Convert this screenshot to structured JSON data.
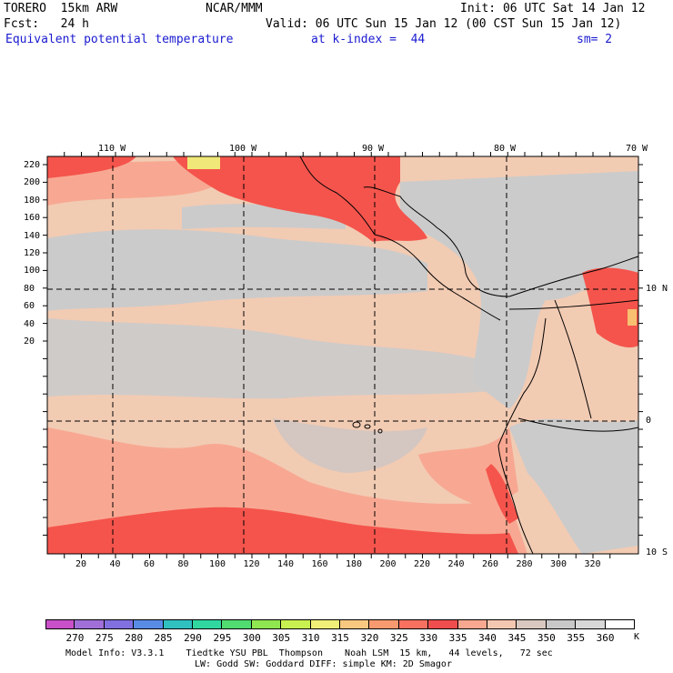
{
  "header": {
    "model": "TORERO  15km ARW",
    "center": "NCAR/MMM",
    "init": "Init: 06 UTC Sat 14 Jan 12",
    "fcst": "Fcst:   24 h",
    "valid": "Valid: 06 UTC Sun 15 Jan 12 (00 CST Sun 15 Jan 12)",
    "field": "Equivalent potential temperature",
    "level": "at k-index =  44",
    "smoothing": "sm= 2"
  },
  "map": {
    "top_lon_labels": [
      "110 W",
      "100 W",
      "90 W",
      "80 W",
      "70 W"
    ],
    "right_lat_labels": [
      "10 N",
      "0",
      "10 S"
    ],
    "left_grid_labels": [
      "220",
      "200",
      "180",
      "160",
      "140",
      "120",
      "100",
      "80",
      "60",
      "40",
      "20"
    ],
    "bottom_grid_labels": [
      "20",
      "40",
      "60",
      "80",
      "100",
      "120",
      "140",
      "160",
      "180",
      "200",
      "220",
      "240",
      "260",
      "280",
      "300",
      "320"
    ]
  },
  "colorbar": {
    "values": [
      "270",
      "275",
      "280",
      "285",
      "290",
      "295",
      "300",
      "305",
      "310",
      "315",
      "320",
      "325",
      "330",
      "335",
      "340",
      "345",
      "350",
      "355",
      "360"
    ],
    "unit": "K",
    "colors": [
      "#c850c8",
      "#a070d8",
      "#8070e0",
      "#5a8ce6",
      "#30c0c0",
      "#30d8a0",
      "#50dc70",
      "#90e650",
      "#c8f050",
      "#f0f078",
      "#f8c880",
      "#f89a70",
      "#f87060",
      "#f04e4e",
      "#f8a890",
      "#f4c8b0",
      "#d8c8c0",
      "#c8c8c8",
      "#d8d8d8",
      "#ffffff"
    ]
  },
  "footer": {
    "line1": "Model Info: V3.3.1    Tiedtke YSU PBL  Thompson    Noah LSM  15 km,   44 levels,   72 sec",
    "line2": "LW: Godd SW: Goddard DIFF: simple KM: 2D Smagor"
  },
  "palette": {
    "peach": "#f2cbb3",
    "grey": "#cbcbcb",
    "salmon": "#f8a892",
    "red": "#f4544c",
    "yellow": "#f0e878"
  }
}
